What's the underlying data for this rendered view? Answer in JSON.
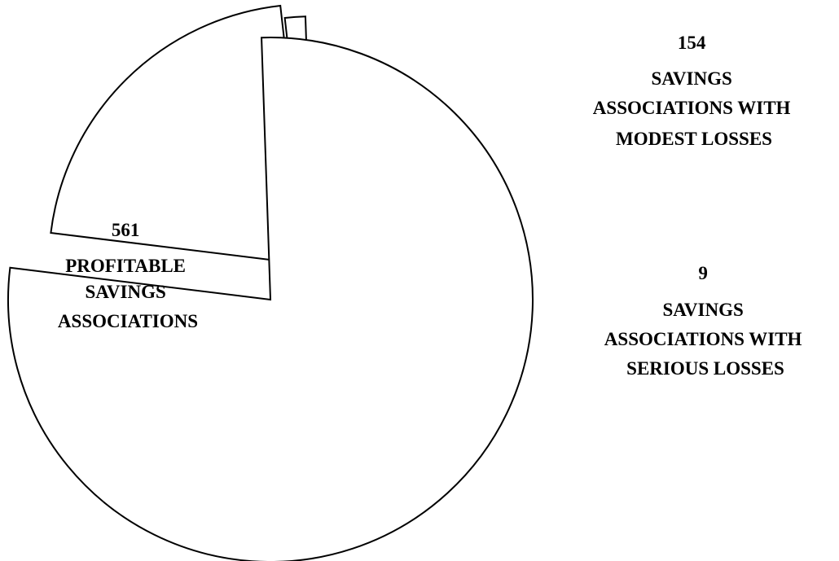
{
  "chart_data": {
    "type": "pie",
    "exploded": true,
    "slices": [
      {
        "value": 154,
        "value_text": "154",
        "label_lines": [
          "SAVINGS",
          "ASSOCIATIONS WITH",
          "MODEST LOSSES"
        ]
      },
      {
        "value": 9,
        "value_text": "9",
        "label_lines": [
          "SAVINGS",
          "ASSOCIATIONS WITH",
          "SERIOUS LOSSES"
        ]
      },
      {
        "value": 561,
        "value_text": "561",
        "label_lines": [
          "PROFITABLE",
          "SAVINGS",
          "ASSOCIATIONS"
        ]
      }
    ],
    "colors": {
      "fill": "#ffffff",
      "stroke": "#000000"
    },
    "legend": "none"
  }
}
